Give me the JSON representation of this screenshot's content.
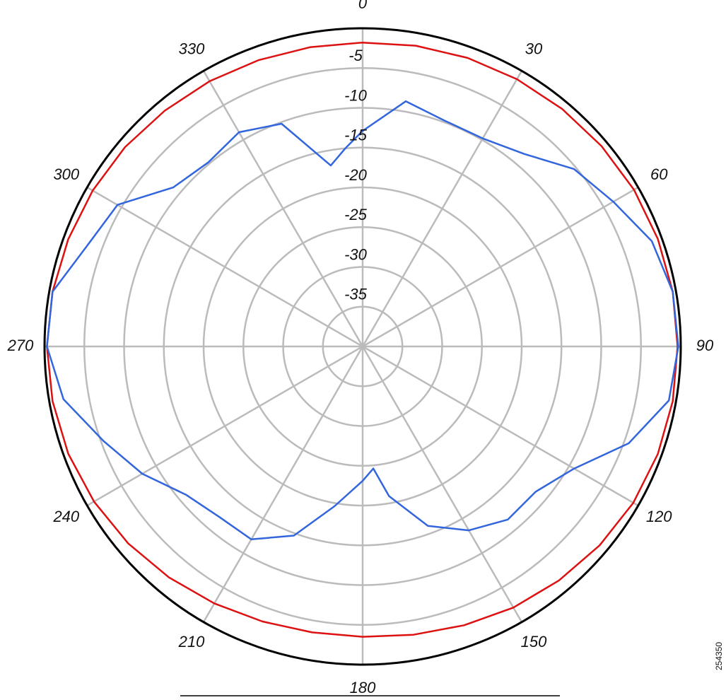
{
  "chart_data": {
    "type": "polar",
    "rlim": [
      -40,
      0
    ],
    "rticks": [
      -35,
      -30,
      -25,
      -20,
      -15,
      -10,
      -5
    ],
    "thetaticks": [
      0,
      30,
      60,
      90,
      120,
      150,
      180,
      210,
      240,
      270,
      300,
      330
    ],
    "grid": true,
    "series": [
      {
        "color": "#dd1111",
        "x": [
          0,
          10,
          20,
          30,
          40,
          50,
          60,
          70,
          80,
          90,
          100,
          110,
          120,
          130,
          140,
          150,
          160,
          170,
          180,
          190,
          200,
          210,
          220,
          230,
          240,
          250,
          260,
          270,
          280,
          290,
          300,
          310,
          320,
          330,
          340,
          350
        ],
        "values": [
          -1.8,
          -1.6,
          -1.4,
          -1.2,
          -1.0,
          -0.8,
          -0.6,
          -0.5,
          -0.4,
          -0.4,
          -0.4,
          -0.5,
          -0.7,
          -1.1,
          -1.6,
          -2.1,
          -2.7,
          -3.2,
          -3.5,
          -3.5,
          -3.2,
          -2.7,
          -2.1,
          -1.5,
          -1.0,
          -0.6,
          -0.4,
          -0.3,
          -0.4,
          -0.6,
          -0.8,
          -1.0,
          -1.3,
          -1.5,
          -1.7,
          -1.8
        ]
      },
      {
        "color": "#3366dd",
        "x": [
          0,
          10,
          20,
          30,
          40,
          50,
          60,
          70,
          80,
          90,
          100,
          110,
          120,
          130,
          140,
          150,
          160,
          170,
          175,
          180,
          190,
          200,
          210,
          220,
          230,
          240,
          250,
          260,
          270,
          280,
          290,
          300,
          310,
          320,
          330,
          340,
          350,
          355
        ],
        "values": [
          -12.9,
          -8.7,
          -9.8,
          -9.8,
          -8.4,
          -5.3,
          -3.6,
          -1.3,
          -0.4,
          -0.3,
          -0.9,
          -4.4,
          -9.3,
          -11.6,
          -11.6,
          -13.3,
          -16.0,
          -20.9,
          -24.6,
          -23.1,
          -19.6,
          -14.7,
          -12.0,
          -12.0,
          -11.0,
          -8.0,
          -5.3,
          -1.8,
          -0.3,
          -0.4,
          -3.1,
          -4.4,
          -8.9,
          -9.8,
          -8.9,
          -10.2,
          -16.9,
          -15.0
        ]
      }
    ]
  },
  "figure_id": "254350"
}
